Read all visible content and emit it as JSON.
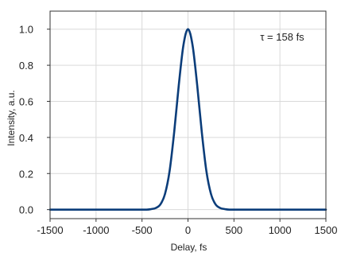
{
  "chart_data": {
    "type": "line",
    "xlabel": "Delay, fs",
    "ylabel": "Intensity, a.u.",
    "xlim": [
      -1500,
      1500
    ],
    "ylim": [
      -0.05,
      1.1
    ],
    "xticks": [
      -1500,
      -1000,
      -500,
      0,
      500,
      1000,
      1500
    ],
    "yticks": [
      0.0,
      0.2,
      0.4,
      0.6,
      0.8,
      1.0
    ],
    "grid": true,
    "annotation": "τ = 158 fs",
    "annotation_position": "top-right",
    "series": [
      {
        "color": "#0b3d7a",
        "x": [
          -1500,
          -600,
          -450,
          -400,
          -350,
          -300,
          -250,
          -200,
          -150,
          -100,
          -50,
          0,
          50,
          100,
          150,
          200,
          250,
          300,
          350,
          400,
          450,
          600,
          1500
        ],
        "y": [
          0.0,
          0.0,
          0.0,
          0.003,
          0.009,
          0.029,
          0.087,
          0.214,
          0.43,
          0.69,
          0.91,
          1.0,
          0.91,
          0.69,
          0.43,
          0.214,
          0.087,
          0.029,
          0.009,
          0.003,
          0.0,
          0.0,
          0.0
        ]
      }
    ]
  }
}
